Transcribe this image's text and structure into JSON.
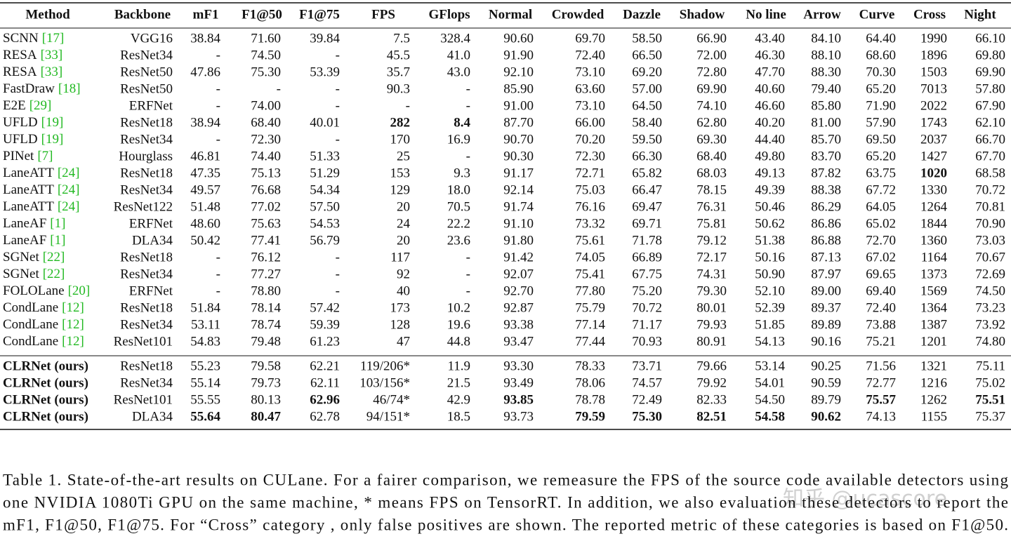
{
  "table": {
    "header": [
      "Method",
      "Backbone",
      "mF1",
      "F1@50",
      "F1@75",
      "FPS",
      "GFlops",
      "Normal",
      "Crowded",
      "Dazzle",
      "Shadow",
      "No line",
      "Arrow",
      "Curve",
      "Cross",
      "Night"
    ],
    "rows": [
      [
        {
          "name": "SCNN",
          "ref": "[17]"
        },
        "VGG16",
        "38.84",
        "71.60",
        "39.84",
        "7.5",
        "328.4",
        "90.60",
        "69.70",
        "58.50",
        "66.90",
        "43.40",
        "84.10",
        "64.40",
        "1990",
        "66.10"
      ],
      [
        {
          "name": "RESA",
          "ref": "[33]"
        },
        "ResNet34",
        "-",
        "74.50",
        "-",
        "45.5",
        "41.0",
        "91.90",
        "72.40",
        "66.50",
        "72.00",
        "46.30",
        "88.10",
        "68.60",
        "1896",
        "69.80"
      ],
      [
        {
          "name": "RESA",
          "ref": "[33]"
        },
        "ResNet50",
        "47.86",
        "75.30",
        "53.39",
        "35.7",
        "43.0",
        "92.10",
        "73.10",
        "69.20",
        "72.80",
        "47.70",
        "88.30",
        "70.30",
        "1503",
        "69.90"
      ],
      [
        {
          "name": "FastDraw",
          "ref": "[18]"
        },
        "ResNet50",
        "-",
        "-",
        "-",
        "90.3",
        "-",
        "85.90",
        "63.60",
        "57.00",
        "69.90",
        "40.60",
        "79.40",
        "65.20",
        "7013",
        "57.80"
      ],
      [
        {
          "name": "E2E",
          "ref": "[29]"
        },
        "ERFNet",
        "-",
        "74.00",
        "-",
        "-",
        "-",
        "91.00",
        "73.10",
        "64.50",
        "74.10",
        "46.60",
        "85.80",
        "71.90",
        "2022",
        "67.90"
      ],
      [
        {
          "name": "UFLD",
          "ref": "[19]"
        },
        "ResNet18",
        "38.94",
        "68.40",
        "40.01",
        "282",
        "8.4",
        "87.70",
        "66.00",
        "58.40",
        "62.80",
        "40.20",
        "81.00",
        "57.90",
        "1743",
        "62.10"
      ],
      [
        {
          "name": "UFLD",
          "ref": "[19]"
        },
        "ResNet34",
        "-",
        "72.30",
        "-",
        "170",
        "16.9",
        "90.70",
        "70.20",
        "59.50",
        "69.30",
        "44.40",
        "85.70",
        "69.50",
        "2037",
        "66.70"
      ],
      [
        {
          "name": "PINet",
          "ref": "[7]"
        },
        "Hourglass",
        "46.81",
        "74.40",
        "51.33",
        "25",
        "-",
        "90.30",
        "72.30",
        "66.30",
        "68.40",
        "49.80",
        "83.70",
        "65.20",
        "1427",
        "67.70"
      ],
      [
        {
          "name": "LaneATT",
          "ref": "[24]"
        },
        "ResNet18",
        "47.35",
        "75.13",
        "51.29",
        "153",
        "9.3",
        "91.17",
        "72.71",
        "65.82",
        "68.03",
        "49.13",
        "87.82",
        "63.75",
        "1020",
        "68.58"
      ],
      [
        {
          "name": "LaneATT",
          "ref": "[24]"
        },
        "ResNet34",
        "49.57",
        "76.68",
        "54.34",
        "129",
        "18.0",
        "92.14",
        "75.03",
        "66.47",
        "78.15",
        "49.39",
        "88.38",
        "67.72",
        "1330",
        "70.72"
      ],
      [
        {
          "name": "LaneATT",
          "ref": "[24]"
        },
        "ResNet122",
        "51.48",
        "77.02",
        "57.50",
        "20",
        "70.5",
        "91.74",
        "76.16",
        "69.47",
        "76.31",
        "50.46",
        "86.29",
        "64.05",
        "1264",
        "70.81"
      ],
      [
        {
          "name": "LaneAF",
          "ref": "[1]"
        },
        "ERFNet",
        "48.60",
        "75.63",
        "54.53",
        "24",
        "22.2",
        "91.10",
        "73.32",
        "69.71",
        "75.81",
        "50.62",
        "86.86",
        "65.02",
        "1844",
        "70.90"
      ],
      [
        {
          "name": "LaneAF",
          "ref": "[1]"
        },
        "DLA34",
        "50.42",
        "77.41",
        "56.79",
        "20",
        "23.6",
        "91.80",
        "75.61",
        "71.78",
        "79.12",
        "51.38",
        "86.88",
        "72.70",
        "1360",
        "73.03"
      ],
      [
        {
          "name": "SGNet",
          "ref": "[22]"
        },
        "ResNet18",
        "-",
        "76.12",
        "-",
        "117",
        "-",
        "91.42",
        "74.05",
        "66.89",
        "72.17",
        "50.16",
        "87.13",
        "67.02",
        "1164",
        "70.67"
      ],
      [
        {
          "name": "SGNet",
          "ref": "[22]"
        },
        "ResNet34",
        "-",
        "77.27",
        "-",
        "92",
        "-",
        "92.07",
        "75.41",
        "67.75",
        "74.31",
        "50.90",
        "87.97",
        "69.65",
        "1373",
        "72.69"
      ],
      [
        {
          "name": "FOLOLane",
          "ref": "[20]"
        },
        "ERFNet",
        "-",
        "78.80",
        "-",
        "40",
        "-",
        "92.70",
        "77.80",
        "75.20",
        "79.30",
        "52.10",
        "89.00",
        "69.40",
        "1569",
        "74.50"
      ],
      [
        {
          "name": "CondLane",
          "ref": "[12]"
        },
        "ResNet18",
        "51.84",
        "78.14",
        "57.42",
        "173",
        "10.2",
        "92.87",
        "75.79",
        "70.72",
        "80.01",
        "52.39",
        "89.37",
        "72.40",
        "1364",
        "73.23"
      ],
      [
        {
          "name": "CondLane",
          "ref": "[12]"
        },
        "ResNet34",
        "53.11",
        "78.74",
        "59.39",
        "128",
        "19.6",
        "93.38",
        "77.14",
        "71.17",
        "79.93",
        "51.85",
        "89.89",
        "73.88",
        "1387",
        "73.92"
      ],
      [
        {
          "name": "CondLane",
          "ref": "[12]"
        },
        "ResNet101",
        "54.83",
        "79.48",
        "61.23",
        "47",
        "44.8",
        "93.47",
        "77.44",
        "70.93",
        "80.91",
        "54.13",
        "90.16",
        "75.21",
        "1201",
        "74.80"
      ],
      [
        "CLRNet (ours)",
        "ResNet18",
        "55.23",
        "79.58",
        "62.21",
        "119/206*",
        "11.9",
        "93.30",
        "78.33",
        "73.71",
        "79.66",
        "53.14",
        "90.25",
        "71.56",
        "1321",
        "75.11"
      ],
      [
        "CLRNet (ours)",
        "ResNet34",
        "55.14",
        "79.73",
        "62.11",
        "103/156*",
        "21.5",
        "93.49",
        "78.06",
        "74.57",
        "79.92",
        "54.01",
        "90.59",
        "72.77",
        "1216",
        "75.02"
      ],
      [
        "CLRNet (ours)",
        "ResNet101",
        "55.55",
        "80.13",
        "62.96",
        "46/74*",
        "42.9",
        "93.85",
        "78.78",
        "72.49",
        "82.33",
        "54.50",
        "89.79",
        "75.57",
        "1262",
        "75.51"
      ],
      [
        "CLRNet (ours)",
        "DLA34",
        "55.64",
        "80.47",
        "62.78",
        "94/151*",
        "18.5",
        "93.73",
        "79.59",
        "75.30",
        "82.51",
        "54.58",
        "90.62",
        "74.13",
        "1155",
        "75.37"
      ]
    ],
    "bold_cells": [
      [
        5,
        5
      ],
      [
        5,
        6
      ],
      [
        8,
        14
      ],
      [
        19,
        0
      ],
      [
        20,
        0
      ],
      [
        21,
        0
      ],
      [
        22,
        0
      ],
      [
        21,
        4
      ],
      [
        21,
        7
      ],
      [
        21,
        13
      ],
      [
        21,
        15
      ],
      [
        22,
        2
      ],
      [
        22,
        3
      ],
      [
        22,
        8
      ],
      [
        22,
        9
      ],
      [
        22,
        10
      ],
      [
        22,
        11
      ],
      [
        22,
        12
      ]
    ]
  },
  "caption": [
    "Table 1. State-of-the-art results on CULane. For a fairer comparison, we remeasure the FPS of the source code available detectors using",
    "one NVIDIA 1080Ti GPU on the same machine, * means FPS on TensorRT. In addition, we also evaluation these detectors to report the",
    "mF1, F1@50, F1@75. For “Cross” category , only false positives are shown. The reported metric of these categories is based on F1@50."
  ],
  "watermark": "知乎 @ucascore"
}
